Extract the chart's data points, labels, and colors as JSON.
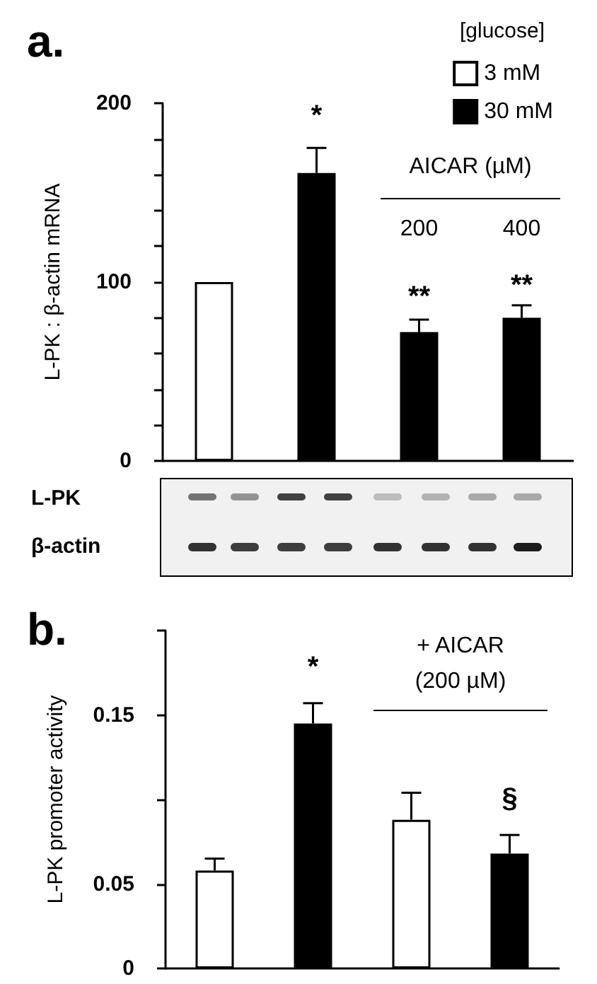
{
  "chart_data": [
    {
      "type": "bar",
      "title": "a.",
      "ylabel": "L-PK : β-actin mRNA",
      "legend_title": "[glucose]",
      "legend": "top right",
      "categories": [
        null,
        null,
        null,
        null
      ],
      "series": [
        {
          "name": "3 mM",
          "color": "#ffffff",
          "values": [
            100,
            null,
            null,
            null
          ]
        },
        {
          "name": "30 mM",
          "color": "#000000",
          "values": [
            null,
            161,
            72,
            80
          ],
          "errors": [
            null,
            14,
            7,
            7
          ]
        }
      ],
      "ylim": [
        0,
        200
      ],
      "yticks": [
        0,
        {
          "value": 20,
          "label": null
        },
        {
          "value": 40,
          "label": null
        },
        {
          "value": 60,
          "label": null
        },
        {
          "value": 80,
          "label": null
        },
        100,
        {
          "value": 120,
          "label": null
        },
        {
          "value": 140,
          "label": null
        },
        {
          "value": 160,
          "label": null
        },
        {
          "value": 180,
          "label": null
        },
        200
      ],
      "annotations": [
        "*",
        "**",
        "**",
        "AICAR (µM)",
        "200",
        "400",
        "L-PK",
        "β-actin"
      ]
    },
    {
      "type": "bar",
      "title": "b.",
      "ylabel": "L-PK promoter activity",
      "categories": [
        null,
        null,
        null,
        null
      ],
      "values": [
        0.058,
        0.145,
        0.088,
        0.068
      ],
      "colors": [
        "#ffffff",
        "#000000",
        "#ffffff",
        "#000000"
      ],
      "errors": [
        0.007,
        0.012,
        0.016,
        0.011
      ],
      "ylim": [
        0,
        0.2
      ],
      "yticks": [
        0,
        0.05,
        {
          "value": 0.1,
          "label": null
        },
        0.15,
        {
          "value": 0.2,
          "label": null
        }
      ],
      "annotations": [
        "*",
        "+ AICAR",
        "(200 µM)",
        "§"
      ]
    }
  ]
}
